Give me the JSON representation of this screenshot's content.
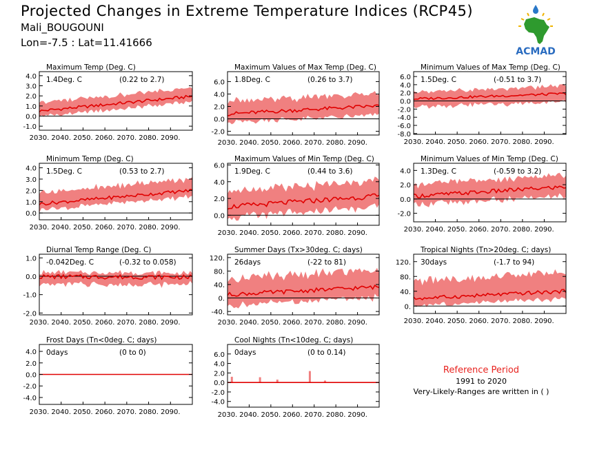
{
  "header": {
    "title": "Projected Changes in Extreme Temperature Indices (RCP45)",
    "location": "Mali_BOUGOUNI",
    "coords": "Lon=-7.5 : Lat=11.41666"
  },
  "logo": {
    "text": "ACMAD",
    "icon": "africa-logo-icon"
  },
  "reference": {
    "title": "Reference Period",
    "years": "1991 to 2020",
    "note": "Very-Likely-Ranges are written in ( )"
  },
  "colors": {
    "band": "#f08080",
    "line": "#e00000",
    "zero": "#000000"
  },
  "chart_data": [
    {
      "type": "area",
      "title": "Maximum Temp (Deg. C)",
      "value_label": "1.4Deg. C",
      "range_label": "(0.22 to 2.7)",
      "x": [
        2030,
        2100
      ],
      "xticks": [
        "2030.",
        "2040.",
        "2050.",
        "2060.",
        "2070.",
        "2080.",
        "2090."
      ],
      "ylim": [
        -1.4,
        4.4
      ],
      "yticks": [
        "-1.0",
        "0.0",
        "1.0",
        "2.0",
        "3.0",
        "4.0"
      ],
      "ytick_values": [
        -1,
        0,
        1,
        2,
        3,
        4
      ],
      "series": [
        {
          "start": 0.5,
          "end": 1.95,
          "amp": 0.15,
          "band_lo": 0.6,
          "band_hi": 0.9
        }
      ]
    },
    {
      "type": "area",
      "title": "Maximum Values of Max Temp (Deg. C)",
      "value_label": "1.8Deg. C",
      "range_label": "(0.26 to 3.7)",
      "x": [
        2030,
        2100
      ],
      "xticks": [
        "2030.",
        "2040.",
        "2050.",
        "2060.",
        "2070.",
        "2080.",
        "2090."
      ],
      "ylim": [
        -2.6,
        7.6
      ],
      "yticks": [
        "-2.0",
        "0.0",
        "2.0",
        "4.0",
        "6.0"
      ],
      "ytick_values": [
        -2,
        0,
        2,
        4,
        6
      ],
      "series": [
        {
          "start": 0.8,
          "end": 2.1,
          "amp": 0.3,
          "band_lo": 1.6,
          "band_hi": 2.2
        }
      ]
    },
    {
      "type": "area",
      "title": "Minimum Values of Max Temp (Deg. C)",
      "value_label": "1.5Deg. C",
      "range_label": "(-0.51 to 3.7)",
      "x": [
        2030,
        2100
      ],
      "xticks": [
        "2030.",
        "2040.",
        "2050.",
        "2060.",
        "2070.",
        "2080.",
        "2090."
      ],
      "ylim": [
        -8.2,
        7.2
      ],
      "yticks": [
        "-8.0",
        "-6.0",
        "-4.0",
        "-2.0",
        "0.0",
        "2.0",
        "4.0",
        "6.0"
      ],
      "ytick_values": [
        -8,
        -6,
        -4,
        -2,
        0,
        2,
        4,
        6
      ],
      "series": [
        {
          "start": 0.5,
          "end": 1.8,
          "amp": 0.3,
          "band_lo": 2.2,
          "band_hi": 2.0
        }
      ]
    },
    {
      "type": "area",
      "title": "Minimum Temp (Deg. C)",
      "value_label": "1.5Deg. C",
      "range_label": "(0.53 to 2.7)",
      "x": [
        2030,
        2100
      ],
      "xticks": [
        "2030.",
        "2040.",
        "2050.",
        "2060.",
        "2070.",
        "2080.",
        "2090."
      ],
      "ylim": [
        -0.6,
        4.4
      ],
      "yticks": [
        "0.0",
        "1.0",
        "2.0",
        "3.0",
        "4.0"
      ],
      "ytick_values": [
        0,
        1,
        2,
        3,
        4
      ],
      "series": [
        {
          "start": 0.8,
          "end": 2.0,
          "amp": 0.15,
          "band_lo": 0.6,
          "band_hi": 1.1
        }
      ]
    },
    {
      "type": "area",
      "title": "Maximum Values of Min Temp (Deg. C)",
      "value_label": "1.9Deg. C",
      "range_label": "(0.44 to 3.6)",
      "x": [
        2030,
        2100
      ],
      "xticks": [
        "2030.",
        "2040.",
        "2050.",
        "2060.",
        "2070.",
        "2080.",
        "2090."
      ],
      "ylim": [
        -1.2,
        6.2
      ],
      "yticks": [
        "0.0",
        "2.0",
        "4.0",
        "6.0"
      ],
      "ytick_values": [
        0,
        2,
        4,
        6
      ],
      "series": [
        {
          "start": 1.0,
          "end": 2.3,
          "amp": 0.3,
          "band_lo": 1.4,
          "band_hi": 2.0
        }
      ]
    },
    {
      "type": "area",
      "title": "Minimum Values of Min Temp (Deg. C)",
      "value_label": "1.3Deg. C",
      "range_label": "(-0.59 to 3.2)",
      "x": [
        2030,
        2100
      ],
      "xticks": [
        "2030.",
        "2040.",
        "2050.",
        "2060.",
        "2070.",
        "2080.",
        "2090."
      ],
      "ylim": [
        -3.2,
        5.0
      ],
      "yticks": [
        "-2.0",
        "0.0",
        "2.0",
        "4.0"
      ],
      "ytick_values": [
        -2,
        0,
        2,
        4
      ],
      "series": [
        {
          "start": 0.4,
          "end": 1.7,
          "amp": 0.3,
          "band_lo": 1.4,
          "band_hi": 1.8
        }
      ]
    },
    {
      "type": "area",
      "title": "Diurnal Temp Range (Deg. C)",
      "value_label": "-0.042Deg. C",
      "range_label": "(-0.32 to 0.058)",
      "x": [
        2030,
        2100
      ],
      "xticks": [
        "2030.",
        "2040.",
        "2050.",
        "2060.",
        "2070.",
        "2080.",
        "2090."
      ],
      "ylim": [
        -2.1,
        1.2
      ],
      "yticks": [
        "-2.0",
        "-1.0",
        "0.0",
        "1.0"
      ],
      "ytick_values": [
        -2,
        -1,
        0,
        1
      ],
      "series": [
        {
          "start": -0.02,
          "end": -0.05,
          "amp": 0.12,
          "band_lo": 0.45,
          "band_hi": 0.25
        }
      ]
    },
    {
      "type": "area",
      "title": "Summer Days (Tx>30deg. C; days)",
      "value_label": "26days",
      "range_label": "(-22 to 81)",
      "x": [
        2030,
        2100
      ],
      "xticks": [
        "2030.",
        "2040.",
        "2050.",
        "2060.",
        "2070.",
        "2080.",
        "2090."
      ],
      "ylim": [
        -50,
        130
      ],
      "yticks": [
        "-40.",
        "0.",
        "40.",
        "80.",
        "120."
      ],
      "ytick_values": [
        -40,
        0,
        40,
        80,
        120
      ],
      "series": [
        {
          "start": 10,
          "end": 33,
          "amp": 6,
          "band_lo": 35,
          "band_hi": 55
        }
      ]
    },
    {
      "type": "area",
      "title": "Tropical Nights (Tn>20deg. C; days)",
      "value_label": "30days",
      "range_label": "(-1.7 to 94)",
      "x": [
        2030,
        2100
      ],
      "xticks": [
        "2030.",
        "2040.",
        "2050.",
        "2060.",
        "2070.",
        "2080.",
        "2090."
      ],
      "ylim": [
        -20,
        140
      ],
      "yticks": [
        "0.",
        "40.",
        "80.",
        "120."
      ],
      "ytick_values": [
        0,
        40,
        80,
        120
      ],
      "series": [
        {
          "start": 20,
          "end": 40,
          "amp": 5,
          "band_lo": 22,
          "band_hi": 55
        }
      ]
    },
    {
      "type": "area",
      "title": "Frost Days (Tn<0deg. C; days)",
      "value_label": "0days",
      "range_label": "(0 to 0)",
      "x": [
        2030,
        2100
      ],
      "xticks": [
        "2030.",
        "2040.",
        "2050.",
        "2060.",
        "2070.",
        "2080.",
        "2090."
      ],
      "ylim": [
        -5.2,
        5.2
      ],
      "yticks": [
        "-4.0",
        "-2.0",
        "0.0",
        "2.0",
        "4.0"
      ],
      "ytick_values": [
        -4,
        -2,
        0,
        2,
        4
      ],
      "series": [
        {
          "start": 0,
          "end": 0,
          "amp": 0,
          "band_lo": 0,
          "band_hi": 0
        }
      ]
    },
    {
      "type": "area",
      "title": "Cool Nights (Tn<10deg. C; days)",
      "value_label": "0days",
      "range_label": "(0 to 0.14)",
      "x": [
        2030,
        2100
      ],
      "xticks": [
        "2030.",
        "2040.",
        "2050.",
        "2060.",
        "2070.",
        "2080.",
        "2090."
      ],
      "ylim": [
        -5.2,
        8.0
      ],
      "yticks": [
        "-4.0",
        "-2.0",
        "0.0",
        "2.0",
        "4.0",
        "6.0"
      ],
      "ytick_values": [
        -4,
        -2,
        0,
        2,
        4,
        6
      ],
      "series": [
        {
          "start": 0,
          "end": 0,
          "amp": 0,
          "band_lo": 0,
          "band_hi": 0,
          "spikes": [
            [
              2032,
              1.2
            ],
            [
              2045,
              1.1
            ],
            [
              2053,
              0.6
            ],
            [
              2068,
              2.4
            ],
            [
              2075,
              0.4
            ]
          ]
        }
      ]
    }
  ]
}
